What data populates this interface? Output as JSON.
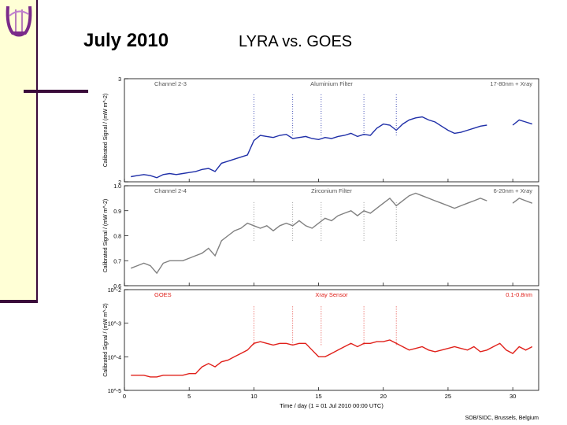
{
  "slide": {
    "title_date": "July 2010",
    "title_main": "LYRA vs. GOES",
    "accent_color": "#3a0a3a",
    "sidebar_color": "#ffffd6",
    "logo": "lyra-lyre-logo"
  },
  "chart_data": [
    {
      "type": "line",
      "panel": "top",
      "labels": [
        "Channel 2-3",
        "Aluminium Filter",
        "17-80nm + Xray"
      ],
      "ylabel": "Calibrated Signal / (mW m^-2)",
      "yticks": [
        "3",
        "2"
      ],
      "ylim": [
        2,
        3
      ],
      "color": "#1f2fa8",
      "series_name": "LYRA Channel 2-3"
    },
    {
      "type": "line",
      "panel": "middle",
      "labels": [
        "Channel 2-4",
        "Zirconium Filter",
        "6-20nm + Xray"
      ],
      "ylabel": "Calibrated Signal / (mW m^-2)",
      "yticks": [
        "1.0",
        "0.9",
        "0.8",
        "0.7",
        "0.6"
      ],
      "ylim": [
        0.6,
        1.0
      ],
      "color": "#808080",
      "series_name": "LYRA Channel 2-4"
    },
    {
      "type": "line",
      "panel": "bottom",
      "labels": [
        "GOES",
        "Xray Sensor",
        "0.1-0.8nm"
      ],
      "ylabel": "Calibrated Signal / (mW m^-2)",
      "yticks": [
        "10^-2",
        "10^-3",
        "10^-4",
        "10^-5"
      ],
      "ylim": [
        1e-05,
        0.01
      ],
      "yscale": "log",
      "color": "#e0201a",
      "series_name": "GOES Xray"
    }
  ],
  "x_axis": {
    "xlabel": "Time / day (1 = 01 Jul 2010 00:00 UTC)",
    "xticks": [
      0,
      5,
      10,
      15,
      20,
      25,
      30
    ],
    "xlim": [
      0,
      32
    ],
    "credit": "SOB/SIDC, Brussels, Belgium"
  },
  "series": {
    "x": [
      0.5,
      1,
      1.5,
      2,
      2.5,
      3,
      3.5,
      4,
      4.5,
      5,
      5.5,
      6,
      6.5,
      7,
      7.5,
      8,
      8.5,
      9,
      9.5,
      10,
      10.5,
      11,
      11.5,
      12,
      12.5,
      13,
      13.5,
      14,
      14.5,
      15,
      15.5,
      16,
      16.5,
      17,
      17.5,
      18,
      18.5,
      19,
      19.5,
      20,
      20.5,
      21,
      21.5,
      22,
      22.5,
      23,
      23.5,
      24,
      24.5,
      25,
      25.5,
      26,
      26.5,
      27,
      27.5,
      28,
      28.5,
      29,
      29.5,
      30,
      30.5,
      31,
      31.5
    ],
    "ch23": [
      2.05,
      2.06,
      2.07,
      2.06,
      2.04,
      2.07,
      2.08,
      2.07,
      2.08,
      2.09,
      2.1,
      2.12,
      2.13,
      2.1,
      2.18,
      2.2,
      2.22,
      2.24,
      2.26,
      2.4,
      2.45,
      2.44,
      2.43,
      2.45,
      2.46,
      2.42,
      2.43,
      2.44,
      2.42,
      2.41,
      2.43,
      2.42,
      2.44,
      2.45,
      2.47,
      2.44,
      2.46,
      2.45,
      2.52,
      2.56,
      2.55,
      2.5,
      2.56,
      2.6,
      2.62,
      2.63,
      2.6,
      2.58,
      2.54,
      2.5,
      2.47,
      2.48,
      2.5,
      2.52,
      2.54,
      2.55,
      null,
      null,
      null,
      2.55,
      2.6,
      2.58,
      2.56
    ],
    "ch24": [
      0.67,
      0.68,
      0.69,
      0.68,
      0.65,
      0.69,
      0.7,
      0.7,
      0.7,
      0.71,
      0.72,
      0.73,
      0.75,
      0.72,
      0.78,
      0.8,
      0.82,
      0.83,
      0.85,
      0.84,
      0.83,
      0.84,
      0.82,
      0.84,
      0.85,
      0.84,
      0.86,
      0.84,
      0.83,
      0.85,
      0.87,
      0.86,
      0.88,
      0.89,
      0.9,
      0.88,
      0.9,
      0.89,
      0.91,
      0.93,
      0.95,
      0.92,
      0.94,
      0.96,
      0.97,
      0.96,
      0.95,
      0.94,
      0.93,
      0.92,
      0.91,
      0.92,
      0.93,
      0.94,
      0.95,
      0.94,
      null,
      null,
      null,
      0.93,
      0.95,
      0.94,
      0.93
    ],
    "goes_log10": [
      -4.55,
      -4.55,
      -4.55,
      -4.6,
      -4.6,
      -4.55,
      -4.55,
      -4.55,
      -4.55,
      -4.5,
      -4.5,
      -4.3,
      -4.2,
      -4.3,
      -4.15,
      -4.1,
      -4.0,
      -3.9,
      -3.8,
      -3.6,
      -3.55,
      -3.6,
      -3.65,
      -3.6,
      -3.6,
      -3.65,
      -3.6,
      -3.6,
      -3.8,
      -4.0,
      -4.0,
      -3.9,
      -3.8,
      -3.7,
      -3.6,
      -3.7,
      -3.6,
      -3.6,
      -3.55,
      -3.55,
      -3.5,
      -3.6,
      -3.7,
      -3.8,
      -3.75,
      -3.7,
      -3.8,
      -3.85,
      -3.8,
      -3.75,
      -3.7,
      -3.75,
      -3.8,
      -3.7,
      -3.85,
      -3.8,
      -3.7,
      -3.6,
      -3.8,
      -3.9,
      -3.7,
      -3.8,
      -3.7
    ]
  }
}
